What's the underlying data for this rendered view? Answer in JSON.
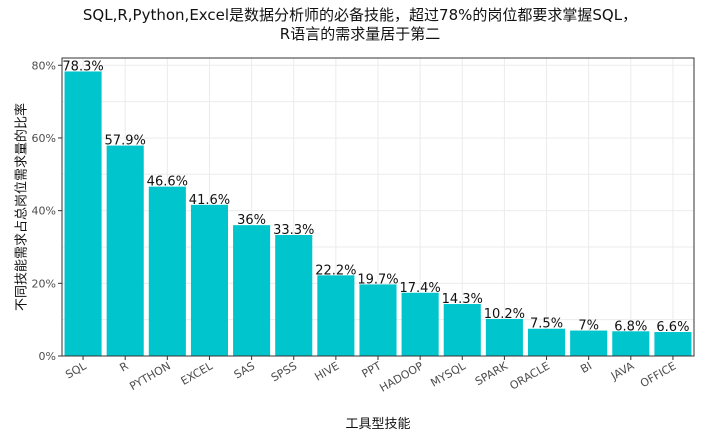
{
  "title_lines": [
    "SQL,R,Python,Excel是数据分析师的必备技能，超过78%的岗位都要求掌握SQL，",
    "R语言的需求量居于第二"
  ],
  "colors": {
    "bar": "#00C5CD",
    "panel_border": "#333333",
    "grid": "#ebebeb"
  },
  "chart_data": {
    "type": "bar",
    "title": "SQL,R,Python,Excel是数据分析师的必备技能，超过78%的岗位都要求掌握SQL，R语言的需求量居于第二",
    "xlabel": "工具型技能",
    "ylabel": "不同技能需求占总岗位需求量的比率",
    "categories": [
      "SQL",
      "R",
      "PYTHON",
      "EXCEL",
      "SAS",
      "SPSS",
      "HIVE",
      "PPT",
      "HADOOP",
      "MYSQL",
      "SPARK",
      "ORACLE",
      "BI",
      "JAVA",
      "OFFICE"
    ],
    "values": [
      78.3,
      57.9,
      46.6,
      41.6,
      36,
      33.3,
      22.2,
      19.7,
      17.4,
      14.3,
      10.2,
      7.5,
      7,
      6.8,
      6.6
    ],
    "value_labels": [
      "78.3%",
      "57.9%",
      "46.6%",
      "41.6%",
      "36%",
      "33.3%",
      "22.2%",
      "19.7%",
      "17.4%",
      "14.3%",
      "10.2%",
      "7.5%",
      "7%",
      "6.8%",
      "6.6%"
    ],
    "yticks": [
      0,
      20,
      40,
      60,
      80
    ],
    "ytick_labels": [
      "0%",
      "20%",
      "40%",
      "60%",
      "80%"
    ],
    "ylim": [
      0,
      82
    ],
    "grid": true,
    "legend": "none"
  }
}
